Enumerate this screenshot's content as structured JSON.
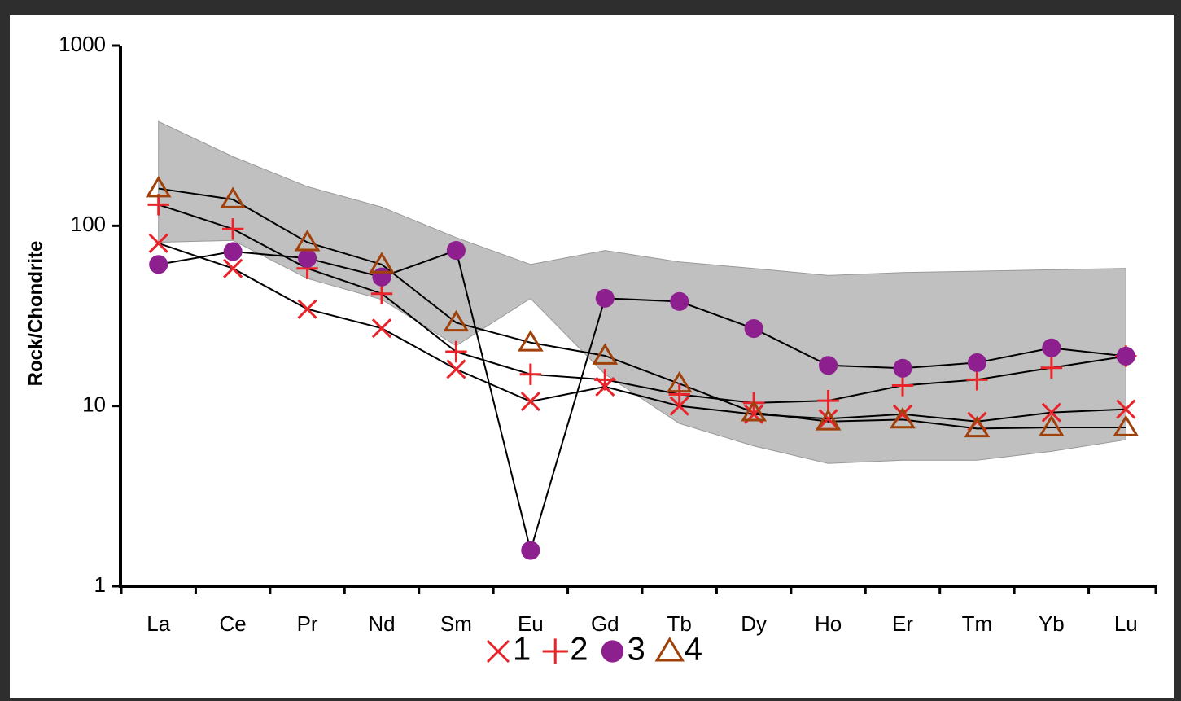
{
  "chart_data": {
    "type": "line",
    "y_label": "Rock/Chondrite",
    "yscale": "log",
    "ylim": [
      1,
      1000
    ],
    "yticks": [
      1,
      10,
      100,
      1000
    ],
    "categories": [
      "La",
      "Ce",
      "Pr",
      "Nd",
      "Sm",
      "Eu",
      "Gd",
      "Tb",
      "Dy",
      "Ho",
      "Er",
      "Tm",
      "Yb",
      "Lu"
    ],
    "band": {
      "color": "#c0c0c0",
      "upper": [
        379,
        242,
        165,
        127,
        86,
        61,
        73,
        63,
        58,
        53,
        55,
        56,
        57,
        58
      ],
      "lower": [
        81,
        83,
        51,
        39,
        21.6,
        39.5,
        15,
        8,
        6,
        4.8,
        5,
        5,
        5.6,
        6.5
      ]
    },
    "line_color": "#000000",
    "series": [
      {
        "name": "1",
        "marker": "x",
        "color": "#e8242a",
        "values": [
          80,
          58,
          34.5,
          27,
          16,
          10.6,
          12.8,
          10,
          9,
          8.5,
          9,
          8.2,
          9.2,
          9.6
        ]
      },
      {
        "name": "2",
        "marker": "plus",
        "color": "#e8242a",
        "values": [
          131,
          96,
          58,
          42,
          20,
          15,
          14,
          11.6,
          10.4,
          10.7,
          13,
          14,
          16.3,
          18.9
        ]
      },
      {
        "name": "3",
        "marker": "circle",
        "color": "#8e1f8e",
        "values": [
          61,
          72,
          66,
          52,
          73,
          1.58,
          39.6,
          38,
          26.9,
          16.8,
          16.2,
          17.4,
          21,
          18.9
        ]
      },
      {
        "name": "4",
        "marker": "triangle",
        "color": "#a0400a",
        "values": [
          161,
          140,
          81,
          61,
          29,
          22.5,
          19,
          13.3,
          9.2,
          8.2,
          8.4,
          7.5,
          7.6,
          7.6
        ]
      }
    ]
  }
}
